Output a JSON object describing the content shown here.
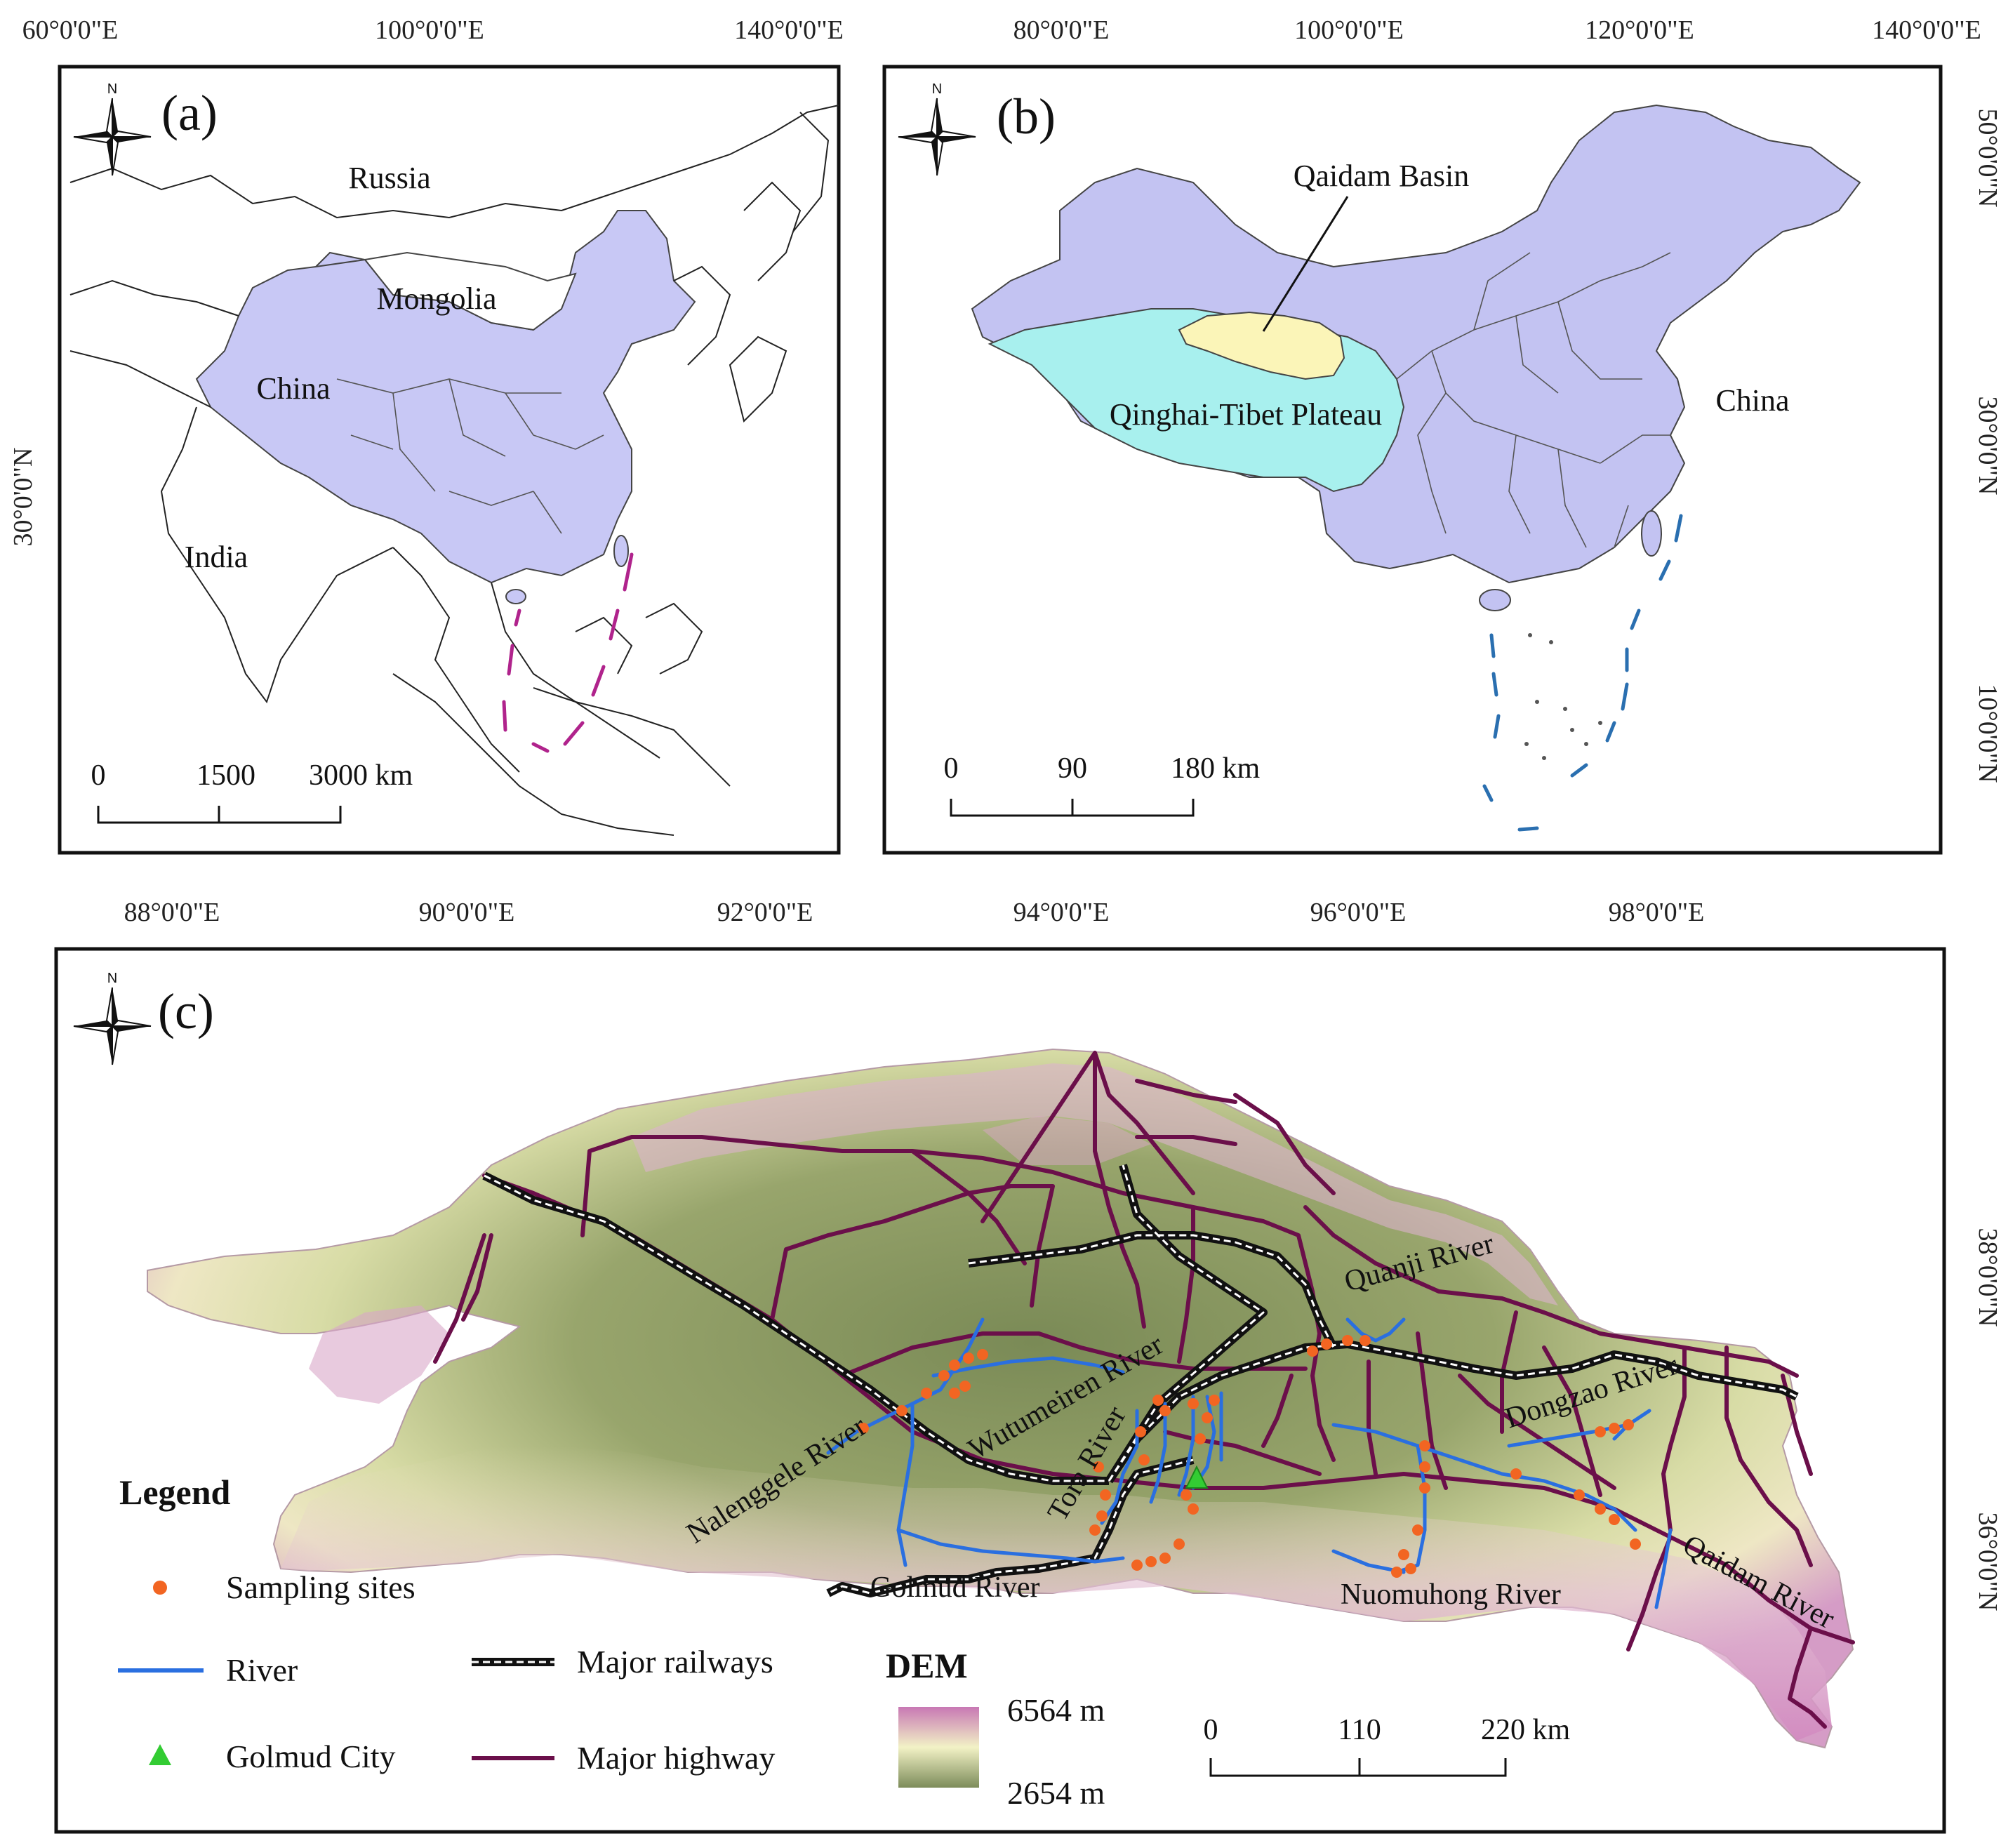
{
  "panel_a": {
    "label": "(a)",
    "north": "N",
    "coords_top": [
      "60°0'0\"E",
      "100°0'0\"E",
      "140°0'0\"E"
    ],
    "coords_left": [
      "30°0'0\"N"
    ],
    "places": {
      "russia": "Russia",
      "mongolia": "Mongolia",
      "china": "China",
      "india": "India"
    },
    "scale": {
      "t0": "0",
      "t1": "1500",
      "t2": "3000 km"
    },
    "colors": {
      "china_fill": "#c8c8f5",
      "dash": "#b0238c"
    }
  },
  "panel_b": {
    "label": "(b)",
    "north": "N",
    "coords_top": [
      "80°0'0\"E",
      "100°0'0\"E",
      "120°0'0\"E",
      "140°0'0\"E"
    ],
    "coords_right": [
      "50°0'0\"N",
      "30°0'0\"N",
      "10°0'0\"N"
    ],
    "places": {
      "qaidam": "Qaidam Basin",
      "plateau": "Qinghai-Tibet Plateau",
      "china": "China"
    },
    "scale": {
      "t0": "0",
      "t1": "90",
      "t2": "180 km"
    },
    "colors": {
      "china_fill": "#c3c3f2",
      "plateau_fill": "#a8f0ee",
      "basin_fill": "#fbf5b8",
      "dash": "#2a6fb0"
    }
  },
  "panel_c": {
    "label": "(c)",
    "north": "N",
    "coords_top": [
      "88°0'0\"E",
      "90°0'0\"E",
      "92°0'0\"E",
      "94°0'0\"E",
      "96°0'0\"E",
      "98°0'0\"E"
    ],
    "coords_right": [
      "38°0'0\"N",
      "36°0'0\"N"
    ],
    "rivers": {
      "quanji": "Quanji River",
      "wutumeiren": "Wutumeiren River",
      "nalenggele": "Nalenggele River",
      "tora": "Tora River",
      "golmud": "Golmud River",
      "dongzao": "Dongzao River",
      "nuomuhong": "Nuomuhong River",
      "qaidam": "Qaidam River"
    },
    "legend": {
      "title": "Legend",
      "sampling_sites": "Sampling sites",
      "river": "River",
      "golmud_city": "Golmud City",
      "major_railways": "Major railways",
      "major_highway": "Major highway"
    },
    "dem": {
      "title": "DEM",
      "max": "6564 m",
      "min": "2654 m"
    },
    "scale": {
      "t0": "0",
      "t1": "110",
      "t2": "220 km"
    },
    "colors": {
      "site": "#f26522",
      "river": "#2a6fe0",
      "city": "#33cc33",
      "highway": "#6b0f4a",
      "railway": "#111111",
      "dem_high": "#c878b4",
      "dem_mid": "#f2f2c6",
      "dem_low": "#7d8c5a"
    }
  }
}
